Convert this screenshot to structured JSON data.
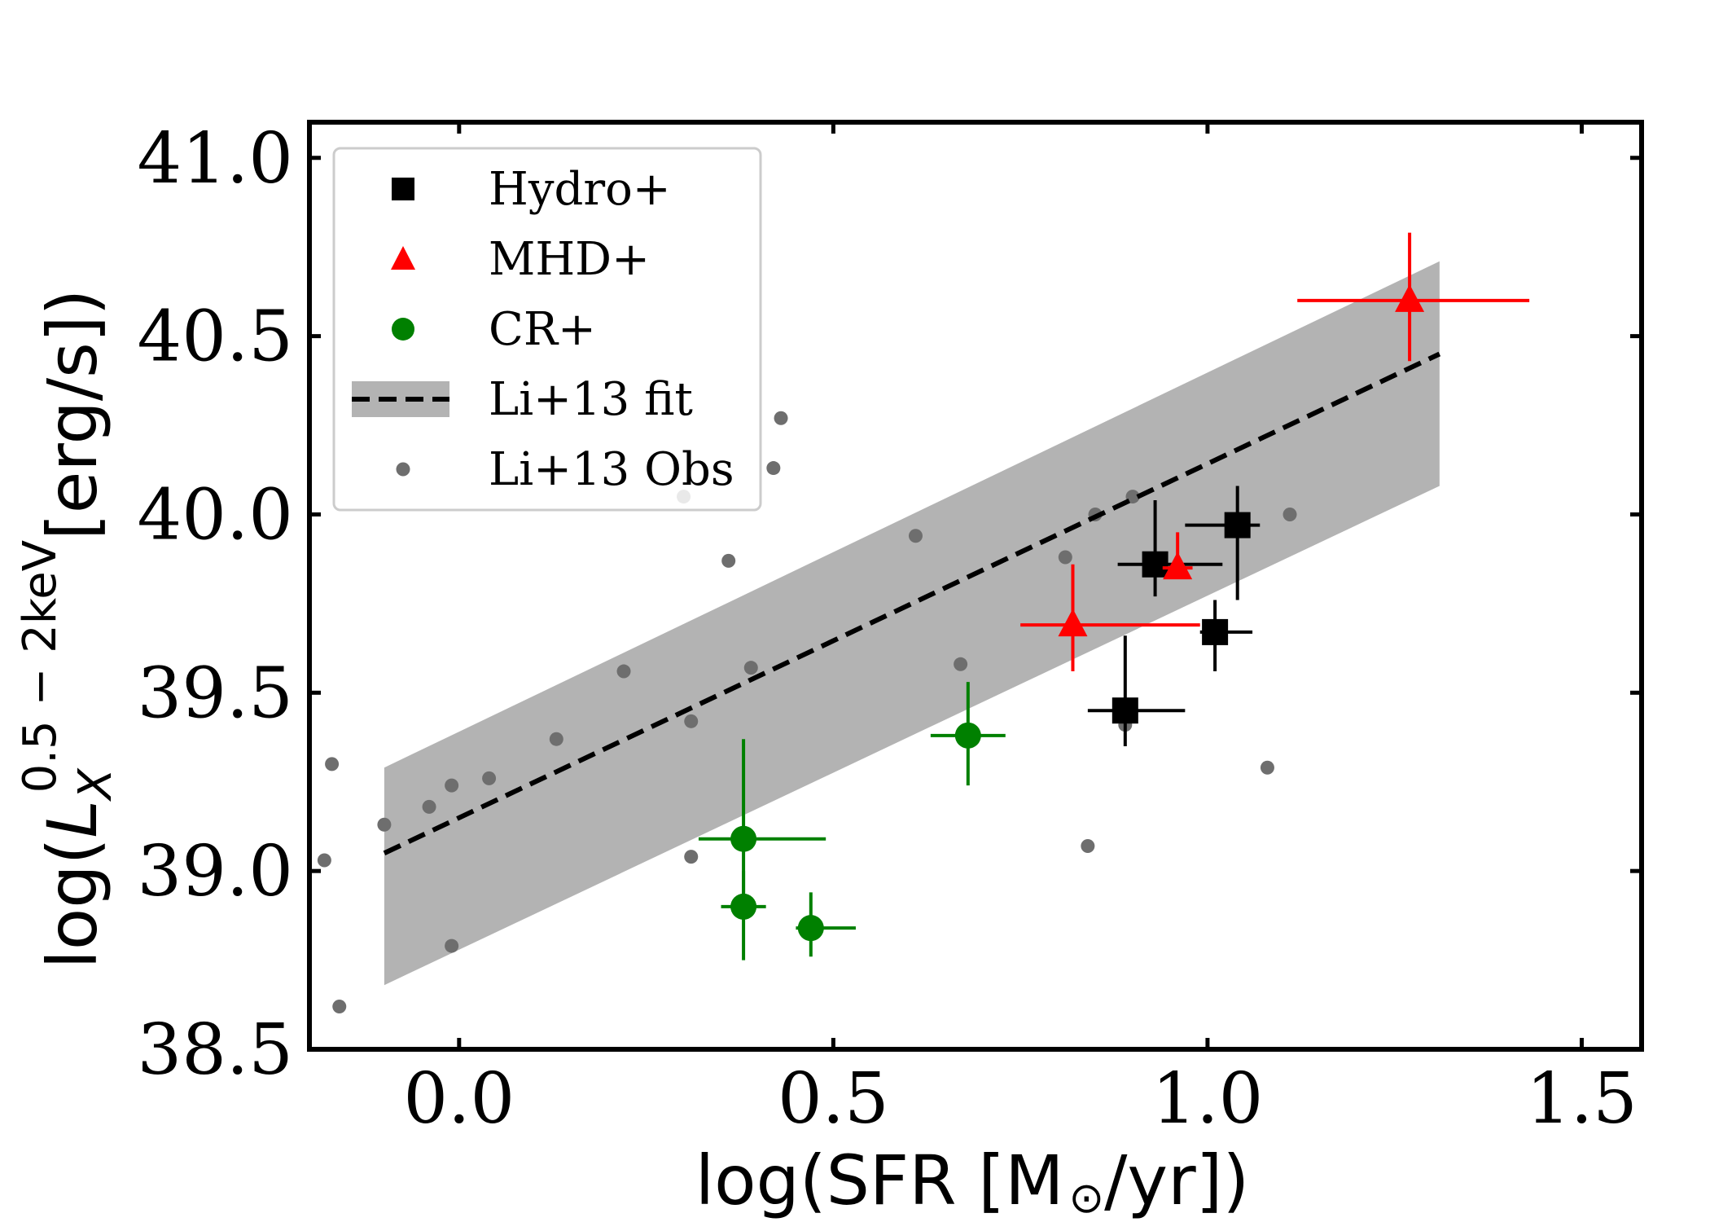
{
  "chart_data": {
    "type": "scatter",
    "xlabel": "log(SFR [M⊙/yr])",
    "ylabel": "log(L_X^{0.5-2keV}[erg/s])",
    "ylabel_parts": {
      "prefix": "log(",
      "var": "L",
      "sub": "X",
      "sup": "0.5 − 2keV",
      "suffix": "[erg/s])"
    },
    "xlabel_parts": {
      "prefix": "log(SFR [M",
      "sun": "⊙",
      "suffix": "/yr])"
    },
    "xlim": [
      -0.2,
      1.58
    ],
    "ylim": [
      38.5,
      41.1
    ],
    "xticks": [
      0.0,
      0.5,
      1.0,
      1.5
    ],
    "xtick_labels": [
      "0.0",
      "0.5",
      "1.0",
      "1.5"
    ],
    "yticks": [
      38.5,
      39.0,
      39.5,
      40.0,
      40.5,
      41.0
    ],
    "ytick_labels": [
      "38.5",
      "39.0",
      "39.5",
      "40.0",
      "40.5",
      "41.0"
    ],
    "legend_position": "top-left",
    "fit": {
      "name": "Li+13 fit",
      "x": [
        -0.1,
        1.31
      ],
      "y": [
        39.05,
        40.45
      ],
      "band_upper": [
        39.29,
        40.71
      ],
      "band_lower": [
        38.68,
        40.08
      ],
      "line_color": "#000000",
      "band_color": "#b3b3b3"
    },
    "series": [
      {
        "name": "Hydro+",
        "marker": "square",
        "color": "#000000",
        "points": [
          {
            "x": 0.93,
            "y": 39.86,
            "xlo": 0.05,
            "xhi": 0.09,
            "ylo": 0.09,
            "yhi": 0.18
          },
          {
            "x": 1.04,
            "y": 39.97,
            "xlo": 0.07,
            "xhi": 0.03,
            "ylo": 0.21,
            "yhi": 0.11
          },
          {
            "x": 1.01,
            "y": 39.67,
            "xlo": 0.02,
            "xhi": 0.05,
            "ylo": 0.11,
            "yhi": 0.09
          },
          {
            "x": 0.89,
            "y": 39.45,
            "xlo": 0.05,
            "xhi": 0.08,
            "ylo": 0.1,
            "yhi": 0.21
          }
        ]
      },
      {
        "name": "MHD+",
        "marker": "triangle",
        "color": "#ff0000",
        "points": [
          {
            "x": 1.27,
            "y": 40.6,
            "xlo": 0.15,
            "xhi": 0.16,
            "ylo": 0.17,
            "yhi": 0.19
          },
          {
            "x": 0.96,
            "y": 39.85,
            "xlo": 0.02,
            "xhi": 0.02,
            "ylo": 0.02,
            "yhi": 0.1
          },
          {
            "x": 0.82,
            "y": 39.69,
            "xlo": 0.07,
            "xhi": 0.17,
            "ylo": 0.13,
            "yhi": 0.17
          }
        ]
      },
      {
        "name": "CR+",
        "marker": "circle",
        "color": "#008000",
        "points": [
          {
            "x": 0.68,
            "y": 39.38,
            "xlo": 0.05,
            "xhi": 0.05,
            "ylo": 0.14,
            "yhi": 0.15
          },
          {
            "x": 0.38,
            "y": 39.09,
            "xlo": 0.06,
            "xhi": 0.11,
            "ylo": 0.18,
            "yhi": 0.28
          },
          {
            "x": 0.38,
            "y": 38.9,
            "xlo": 0.03,
            "xhi": 0.03,
            "ylo": 0.15,
            "yhi": 0.1
          },
          {
            "x": 0.47,
            "y": 38.84,
            "xlo": 0.02,
            "xhi": 0.06,
            "ylo": 0.08,
            "yhi": 0.1
          }
        ]
      }
    ],
    "observations": {
      "name": "Li+13 Obs",
      "color": "#6e6e6e",
      "x": [
        -0.17,
        -0.18,
        -0.1,
        -0.04,
        -0.01,
        0.04,
        0.13,
        0.22,
        0.3,
        0.31,
        0.31,
        0.36,
        0.39,
        0.42,
        0.43,
        0.61,
        0.67,
        0.81,
        0.84,
        0.85,
        0.89,
        0.9,
        1.08,
        1.11,
        -0.16,
        -0.01
      ],
      "y": [
        39.3,
        39.03,
        39.13,
        39.18,
        39.24,
        39.26,
        39.37,
        39.56,
        40.05,
        39.42,
        39.04,
        39.87,
        39.57,
        40.13,
        40.27,
        39.94,
        39.58,
        39.88,
        39.07,
        40.0,
        39.41,
        40.05,
        39.29,
        40.0,
        38.62,
        38.79
      ]
    },
    "legend": [
      {
        "label": "Hydro+",
        "marker": "square",
        "color": "#000000"
      },
      {
        "label": "MHD+",
        "marker": "triangle",
        "color": "#ff0000"
      },
      {
        "label": "CR+",
        "marker": "circle",
        "color": "#008000"
      },
      {
        "label": "Li+13 fit",
        "marker": "dashed-band",
        "color": "#000000"
      },
      {
        "label": "Li+13 Obs",
        "marker": "dot",
        "color": "#6e6e6e"
      }
    ]
  }
}
